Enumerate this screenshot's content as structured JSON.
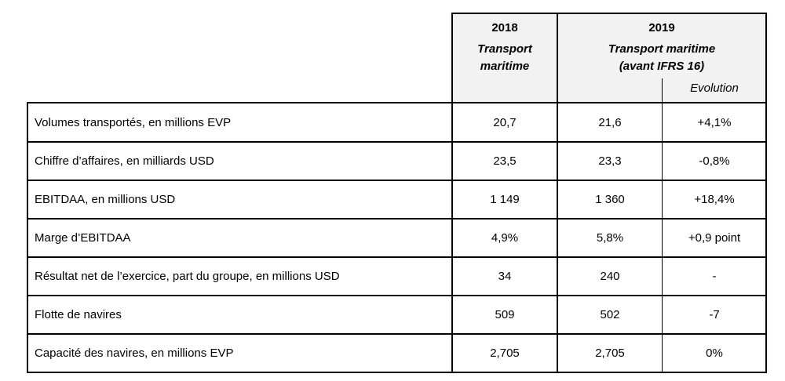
{
  "header": {
    "year_2018": "2018",
    "sub_2018": [
      "Transport",
      "maritime"
    ],
    "year_2019": "2019",
    "sub_2019": [
      "Transport maritime",
      "(avant IFRS 16)"
    ],
    "evolution_label": "Evolution"
  },
  "rows": [
    {
      "label": "Volumes transportés, en millions EVP",
      "v2018": "20,7",
      "v2019": "21,6",
      "evolution": "+4,1%"
    },
    {
      "label": "Chiffre d’affaires, en milliards USD",
      "v2018": "23,5",
      "v2019": "23,3",
      "evolution": "-0,8%"
    },
    {
      "label": "EBITDAA, en millions USD",
      "v2018": "1 149",
      "v2019": "1 360",
      "evolution": "+18,4%"
    },
    {
      "label": "Marge d’EBITDAA",
      "v2018": "4,9%",
      "v2019": "5,8%",
      "evolution": "+0,9 point"
    },
    {
      "label": "Résultat net de l’exercice, part du groupe, en millions USD",
      "v2018": "34",
      "v2019": "240",
      "evolution": "-"
    },
    {
      "label": "Flotte de navires",
      "v2018": "509",
      "v2019": "502",
      "evolution": "-7"
    },
    {
      "label": "Capacité des navires, en millions EVP",
      "v2018": "2,705",
      "v2019": "2,705",
      "evolution": "0%"
    }
  ]
}
